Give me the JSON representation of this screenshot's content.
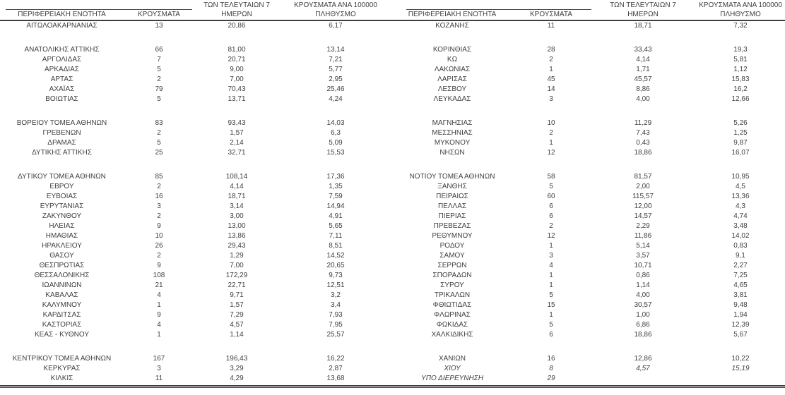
{
  "headers": {
    "region": "ΠΕΡΙΦΕΡΕΙΑΚΗ ΕΝΟΤΗΤΑ",
    "cases": "ΚΡΟΥΣΜΑΤΑ",
    "last7": "ΤΩΝ ΤΕΛΕΥΤΑΙΩΝ 7\nΗΜΕΡΩΝ",
    "per100k": "ΚΡΟΥΣΜΑΤΑ ΑΝΑ 100000\nΠΛΗΘΥΣΜΟ"
  },
  "colors": {
    "text": "#3f3f3f",
    "rule": "#3f3f3f",
    "background": "#ffffff"
  },
  "tables": [
    {
      "side": "left",
      "rows": [
        {
          "region": "ΑΙΤΩΛΟΑΚΑΡΝΑΝΙΑΣ",
          "cases": "13",
          "last7": "20,86",
          "per100k": "6,17"
        },
        {
          "blank": true
        },
        {
          "region": "ΑΝΑΤΟΛΙΚΗΣ ΑΤΤΙΚΗΣ",
          "cases": "66",
          "last7": "81,00",
          "per100k": "13,14"
        },
        {
          "region": "ΑΡΓΟΛΙΔΑΣ",
          "cases": "7",
          "last7": "20,71",
          "per100k": "7,21"
        },
        {
          "region": "ΑΡΚΑΔΙΑΣ",
          "cases": "5",
          "last7": "9,00",
          "per100k": "5,77"
        },
        {
          "region": "ΑΡΤΑΣ",
          "cases": "2",
          "last7": "7,00",
          "per100k": "2,95"
        },
        {
          "region": "ΑΧΑΪΑΣ",
          "cases": "79",
          "last7": "70,43",
          "per100k": "25,46"
        },
        {
          "region": "ΒΟΙΩΤΙΑΣ",
          "cases": "5",
          "last7": "13,71",
          "per100k": "4,24"
        },
        {
          "blank": true
        },
        {
          "region": "ΒΟΡΕΙΟΥ ΤΟΜΕΑ ΑΘΗΝΩΝ",
          "cases": "83",
          "last7": "93,43",
          "per100k": "14,03"
        },
        {
          "region": "ΓΡΕΒΕΝΩΝ",
          "cases": "2",
          "last7": "1,57",
          "per100k": "6,3"
        },
        {
          "region": "ΔΡΑΜΑΣ",
          "cases": "5",
          "last7": "2,14",
          "per100k": "5,09"
        },
        {
          "region": "ΔΥΤΙΚΗΣ ΑΤΤΙΚΗΣ",
          "cases": "25",
          "last7": "32,71",
          "per100k": "15,53"
        },
        {
          "blank": true
        },
        {
          "region": "ΔΥΤΙΚΟΥ ΤΟΜΕΑ ΑΘΗΝΩΝ",
          "cases": "85",
          "last7": "108,14",
          "per100k": "17,36"
        },
        {
          "region": "ΕΒΡΟΥ",
          "cases": "2",
          "last7": "4,14",
          "per100k": "1,35"
        },
        {
          "region": "ΕΥΒΟΙΑΣ",
          "cases": "16",
          "last7": "18,71",
          "per100k": "7,59"
        },
        {
          "region": "ΕΥΡΥΤΑΝΙΑΣ",
          "cases": "3",
          "last7": "3,14",
          "per100k": "14,94"
        },
        {
          "region": "ΖΑΚΥΝΘΟΥ",
          "cases": "2",
          "last7": "3,00",
          "per100k": "4,91"
        },
        {
          "region": "ΗΛΕΙΑΣ",
          "cases": "9",
          "last7": "13,00",
          "per100k": "5,65"
        },
        {
          "region": "ΗΜΑΘΙΑΣ",
          "cases": "10",
          "last7": "13,86",
          "per100k": "7,11"
        },
        {
          "region": "ΗΡΑΚΛΕΙΟΥ",
          "cases": "26",
          "last7": "29,43",
          "per100k": "8,51"
        },
        {
          "region": "ΘΑΣΟΥ",
          "cases": "2",
          "last7": "1,29",
          "per100k": "14,52"
        },
        {
          "region": "ΘΕΣΠΡΩΤΙΑΣ",
          "cases": "9",
          "last7": "7,00",
          "per100k": "20,65"
        },
        {
          "region": "ΘΕΣΣΑΛΟΝΙΚΗΣ",
          "cases": "108",
          "last7": "172,29",
          "per100k": "9,73"
        },
        {
          "region": "ΙΩΑΝΝΙΝΩΝ",
          "cases": "21",
          "last7": "22,71",
          "per100k": "12,51"
        },
        {
          "region": "ΚΑΒΑΛΑΣ",
          "cases": "4",
          "last7": "9,71",
          "per100k": "3,2"
        },
        {
          "region": "ΚΑΛΥΜΝΟΥ",
          "cases": "1",
          "last7": "1,57",
          "per100k": "3,4"
        },
        {
          "region": "ΚΑΡΔΙΤΣΑΣ",
          "cases": "9",
          "last7": "7,29",
          "per100k": "7,93"
        },
        {
          "region": "ΚΑΣΤΟΡΙΑΣ",
          "cases": "4",
          "last7": "4,57",
          "per100k": "7,95"
        },
        {
          "region": "ΚΕΑΣ - ΚΥΘΝΟΥ",
          "cases": "1",
          "last7": "1,14",
          "per100k": "25,57"
        },
        {
          "blank": true
        },
        {
          "region": "ΚΕΝΤΡΙΚΟΥ ΤΟΜΕΑ ΑΘΗΝΩΝ",
          "cases": "167",
          "last7": "196,43",
          "per100k": "16,22"
        },
        {
          "region": "ΚΕΡΚΥΡΑΣ",
          "cases": "3",
          "last7": "3,29",
          "per100k": "2,87"
        },
        {
          "region": "ΚΙΛΚΙΣ",
          "cases": "11",
          "last7": "4,29",
          "per100k": "13,68"
        }
      ]
    },
    {
      "side": "right",
      "rows": [
        {
          "region": "ΚΟΖΑΝΗΣ",
          "cases": "11",
          "last7": "18,71",
          "per100k": "7,32"
        },
        {
          "blank": true
        },
        {
          "region": "ΚΟΡΙΝΘΙΑΣ",
          "cases": "28",
          "last7": "33,43",
          "per100k": "19,3"
        },
        {
          "region": "ΚΩ",
          "cases": "2",
          "last7": "4,14",
          "per100k": "5,81"
        },
        {
          "region": "ΛΑΚΩΝΙΑΣ",
          "cases": "1",
          "last7": "1,71",
          "per100k": "1,12"
        },
        {
          "region": "ΛΑΡΙΣΑΣ",
          "cases": "45",
          "last7": "45,57",
          "per100k": "15,83"
        },
        {
          "region": "ΛΕΣΒΟΥ",
          "cases": "14",
          "last7": "8,86",
          "per100k": "16,2"
        },
        {
          "region": "ΛΕΥΚΑΔΑΣ",
          "cases": "3",
          "last7": "4,00",
          "per100k": "12,66"
        },
        {
          "blank": true
        },
        {
          "region": "ΜΑΓΝΗΣΙΑΣ",
          "cases": "10",
          "last7": "11,29",
          "per100k": "5,26"
        },
        {
          "region": "ΜΕΣΣΗΝΙΑΣ",
          "cases": "2",
          "last7": "7,43",
          "per100k": "1,25"
        },
        {
          "region": "ΜΥΚΟΝΟΥ",
          "cases": "1",
          "last7": "0,43",
          "per100k": "9,87"
        },
        {
          "region": "ΝΗΣΩΝ",
          "cases": "12",
          "last7": "18,86",
          "per100k": "16,07"
        },
        {
          "blank": true
        },
        {
          "region": "ΝΟΤΙΟΥ ΤΟΜΕΑ ΑΘΗΝΩΝ",
          "cases": "58",
          "last7": "81,57",
          "per100k": "10,95"
        },
        {
          "region": "ΞΑΝΘΗΣ",
          "cases": "5",
          "last7": "2,00",
          "per100k": "4,5"
        },
        {
          "region": "ΠΕΙΡΑΙΩΣ",
          "cases": "60",
          "last7": "115,57",
          "per100k": "13,36"
        },
        {
          "region": "ΠΕΛΛΑΣ",
          "cases": "6",
          "last7": "12,00",
          "per100k": "4,3"
        },
        {
          "region": "ΠΙΕΡΙΑΣ",
          "cases": "6",
          "last7": "14,57",
          "per100k": "4,74"
        },
        {
          "region": "ΠΡΕΒΕΖΑΣ",
          "cases": "2",
          "last7": "2,29",
          "per100k": "3,48"
        },
        {
          "region": "ΡΕΘΥΜΝΟΥ",
          "cases": "12",
          "last7": "11,86",
          "per100k": "14,02"
        },
        {
          "region": "ΡΟΔΟΥ",
          "cases": "1",
          "last7": "5,14",
          "per100k": "0,83"
        },
        {
          "region": "ΣΑΜΟΥ",
          "cases": "3",
          "last7": "3,57",
          "per100k": "9,1"
        },
        {
          "region": "ΣΕΡΡΩΝ",
          "cases": "4",
          "last7": "10,71",
          "per100k": "2,27"
        },
        {
          "region": "ΣΠΟΡΑΔΩΝ",
          "cases": "1",
          "last7": "0,86",
          "per100k": "7,25"
        },
        {
          "region": "ΣΥΡΟΥ",
          "cases": "1",
          "last7": "1,14",
          "per100k": "4,65"
        },
        {
          "region": "ΤΡΙΚΑΛΩΝ",
          "cases": "5",
          "last7": "4,00",
          "per100k": "3,81"
        },
        {
          "region": "ΦΘΙΩΤΙΔΑΣ",
          "cases": "15",
          "last7": "30,57",
          "per100k": "9,48"
        },
        {
          "region": "ΦΛΩΡΙΝΑΣ",
          "cases": "1",
          "last7": "1,00",
          "per100k": "1,94"
        },
        {
          "region": "ΦΩΚΙΔΑΣ",
          "cases": "5",
          "last7": "6,86",
          "per100k": "12,39"
        },
        {
          "region": "ΧΑΛΚΙΔΙΚΗΣ",
          "cases": "6",
          "last7": "18,86",
          "per100k": "5,67"
        },
        {
          "blank": true
        },
        {
          "region": "ΧΑΝΙΩΝ",
          "cases": "16",
          "last7": "12,86",
          "per100k": "10,22"
        },
        {
          "region": "ΧΙΟΥ",
          "cases": "8",
          "last7": "4,57",
          "per100k": "15,19",
          "italic": true
        },
        {
          "region": "ΥΠΟ ΔΙΕΡΕΥΝΗΣΗ",
          "cases": "29",
          "last7": "",
          "per100k": "",
          "italic": true
        }
      ]
    }
  ]
}
